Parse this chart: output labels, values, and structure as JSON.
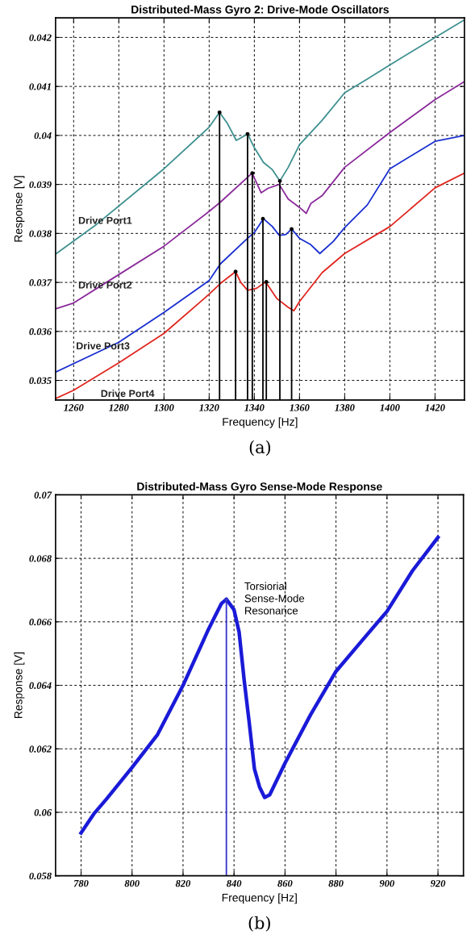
{
  "chart_data": [
    {
      "type": "line",
      "title": "Distributed-Mass Gyro 2: Drive-Mode Oscillators",
      "xlabel": "Frequency [Hz]",
      "ylabel": "Response [V]",
      "annotations": [
        "(a)"
      ],
      "xlim": [
        1252,
        1433
      ],
      "ylim": [
        0.0346,
        0.0424
      ],
      "xticks": [
        1260,
        1280,
        1300,
        1320,
        1340,
        1360,
        1380,
        1400,
        1420
      ],
      "yticks": [
        0.035,
        0.036,
        0.037,
        0.038,
        0.039,
        0.04,
        0.041,
        0.042
      ],
      "grid": true,
      "marker": "none",
      "line_style": "solid",
      "series": [
        {
          "name": "Drive Port1",
          "color": "#3f9090",
          "x": [
            1252,
            1270,
            1300,
            1320,
            1324.6,
            1328,
            1332,
            1334,
            1337,
            1340,
            1344,
            1348,
            1351.3,
            1355,
            1360,
            1370,
            1380,
            1390,
            1400,
            1420,
            1433
          ],
          "values": [
            0.03758,
            0.03818,
            0.03932,
            0.04017,
            0.04047,
            0.04025,
            0.0399,
            0.03995,
            0.04003,
            0.03975,
            0.03945,
            0.0393,
            0.03907,
            0.03935,
            0.03981,
            0.04031,
            0.04087,
            0.04115,
            0.04144,
            0.042,
            0.04236
          ]
        },
        {
          "name": "Drive Port2",
          "color": "#8a2a9a",
          "x": [
            1252,
            1260,
            1280,
            1300,
            1320,
            1325,
            1339,
            1343,
            1346,
            1351,
            1355,
            1360,
            1363,
            1365,
            1370,
            1380,
            1400,
            1420,
            1433
          ],
          "values": [
            0.03646,
            0.03658,
            0.03716,
            0.03774,
            0.03845,
            0.03864,
            0.03923,
            0.03883,
            0.03892,
            0.039,
            0.0387,
            0.03853,
            0.03841,
            0.03861,
            0.03877,
            0.03935,
            0.04006,
            0.04073,
            0.0411
          ]
        },
        {
          "name": "Drive Port3",
          "color": "#1a2fd0",
          "x": [
            1252,
            1280,
            1300,
            1320,
            1325,
            1337,
            1340,
            1344,
            1348,
            1351,
            1354,
            1356.5,
            1360,
            1365,
            1369,
            1375,
            1380,
            1390,
            1400,
            1420,
            1433
          ],
          "values": [
            0.03517,
            0.03578,
            0.03639,
            0.03704,
            0.03738,
            0.0379,
            0.03802,
            0.0383,
            0.03814,
            0.03796,
            0.03798,
            0.03809,
            0.0379,
            0.03777,
            0.03759,
            0.03784,
            0.03812,
            0.03858,
            0.03932,
            0.03988,
            0.04
          ]
        },
        {
          "name": "Drive Port4",
          "color": "#e0261f",
          "x": [
            1252,
            1260,
            1280,
            1300,
            1320,
            1325,
            1331.7,
            1334,
            1337,
            1341,
            1345,
            1350,
            1355,
            1357.5,
            1360,
            1370,
            1380,
            1400,
            1420,
            1433
          ],
          "values": [
            0.03463,
            0.0348,
            0.03536,
            0.03596,
            0.03676,
            0.03698,
            0.03722,
            0.037,
            0.03684,
            0.03688,
            0.03701,
            0.03667,
            0.03649,
            0.03642,
            0.03661,
            0.0372,
            0.03759,
            0.03814,
            0.03893,
            0.03923
          ]
        },
        {
          "type": "lollipop",
          "color": "#000000",
          "x": [
            1324.6,
            1331.7,
            1337,
            1339.1,
            1343.8,
            1345.3,
            1351.3,
            1356.5
          ],
          "values": [
            0.04047,
            0.03722,
            0.04003,
            0.03923,
            0.0383,
            0.03701,
            0.03907,
            0.03809
          ]
        }
      ]
    },
    {
      "type": "line",
      "title": "Distributed-Mass Gyro Sense-Mode Response",
      "xlabel": "Frequency [Hz]",
      "ylabel": "Response [V]",
      "annotations": [
        {
          "text": "Torsiorial\nSense-Mode\nResonance",
          "x": 837,
          "y": 0.06671
        },
        "(b)"
      ],
      "xlim": [
        770,
        930
      ],
      "ylim": [
        0.058,
        0.07
      ],
      "xticks": [
        780,
        800,
        820,
        840,
        860,
        880,
        900,
        920
      ],
      "yticks": [
        0.058,
        0.06,
        0.062,
        0.064,
        0.066,
        0.068,
        0.07
      ],
      "grid": true,
      "marker": "none",
      "line_style": "solid",
      "series": [
        {
          "color": "#1a1ad8",
          "x": [
            780,
            785,
            790,
            800,
            810,
            820,
            830,
            835,
            837,
            840,
            842,
            844,
            846,
            848,
            850,
            852,
            854,
            860,
            870,
            880,
            890,
            900,
            910,
            920
          ],
          "values": [
            0.05935,
            0.05995,
            0.06042,
            0.06141,
            0.06245,
            0.064,
            0.06577,
            0.06657,
            0.06671,
            0.06638,
            0.06567,
            0.06415,
            0.0628,
            0.06137,
            0.0608,
            0.06047,
            0.06055,
            0.06155,
            0.06307,
            0.06444,
            0.06539,
            0.06633,
            0.06761,
            0.06866
          ]
        },
        {
          "type": "lollipop",
          "color": "#3333cc",
          "x": [
            837
          ],
          "values": [
            0.06671
          ]
        }
      ]
    }
  ]
}
